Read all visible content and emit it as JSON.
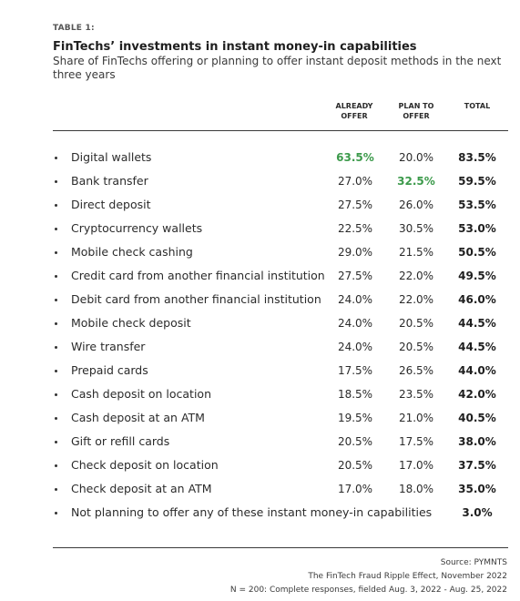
{
  "table_label": "TABLE 1:",
  "title": "FinTechs’ investments in instant money-in capabilities",
  "subtitle": "Share of FinTechs offering or planning to offer instant deposit methods in the next three years",
  "columns": {
    "already_offer": [
      "ALREADY",
      "OFFER"
    ],
    "plan_to_offer": [
      "PLAN TO",
      "OFFER"
    ],
    "total": "TOTAL"
  },
  "highlight_color": "#3c9a4b",
  "rows": [
    {
      "name": "Digital wallets",
      "already": "63.5%",
      "plan": "20.0%",
      "total": "83.5%",
      "hl": "already"
    },
    {
      "name": "Bank transfer",
      "already": "27.0%",
      "plan": "32.5%",
      "total": "59.5%",
      "hl": "plan"
    },
    {
      "name": "Direct deposit",
      "already": "27.5%",
      "plan": "26.0%",
      "total": "53.5%"
    },
    {
      "name": "Cryptocurrency wallets",
      "already": "22.5%",
      "plan": "30.5%",
      "total": "53.0%"
    },
    {
      "name": "Mobile check cashing",
      "already": "29.0%",
      "plan": "21.5%",
      "total": "50.5%"
    },
    {
      "name": "Credit card from another financial institution",
      "already": "27.5%",
      "plan": "22.0%",
      "total": "49.5%"
    },
    {
      "name": "Debit card from another financial institution",
      "already": "24.0%",
      "plan": "22.0%",
      "total": "46.0%"
    },
    {
      "name": "Mobile check deposit",
      "already": "24.0%",
      "plan": "20.5%",
      "total": "44.5%"
    },
    {
      "name": "Wire transfer",
      "already": "24.0%",
      "plan": "20.5%",
      "total": "44.5%"
    },
    {
      "name": "Prepaid cards",
      "already": "17.5%",
      "plan": "26.5%",
      "total": "44.0%"
    },
    {
      "name": "Cash deposit on location",
      "already": "18.5%",
      "plan": "23.5%",
      "total": "42.0%"
    },
    {
      "name": "Cash deposit at an ATM",
      "already": "19.5%",
      "plan": "21.0%",
      "total": "40.5%"
    },
    {
      "name": "Gift or refill cards",
      "already": "20.5%",
      "plan": "17.5%",
      "total": "38.0%"
    },
    {
      "name": "Check deposit on location",
      "already": "20.5%",
      "plan": "17.0%",
      "total": "37.5%"
    },
    {
      "name": "Check deposit at an ATM",
      "already": "17.0%",
      "plan": "18.0%",
      "total": "35.0%"
    },
    {
      "name": "Not planning to offer any of these instant money-in capabilities",
      "already": "",
      "plan": "",
      "total": "3.0%"
    }
  ],
  "footer": {
    "source": "Source: PYMNTS",
    "report": "The FinTech Fraud Ripple Effect, November 2022",
    "sample": "N = 200: Complete responses, fielded Aug. 3, 2022  - Aug. 25, 2022"
  }
}
